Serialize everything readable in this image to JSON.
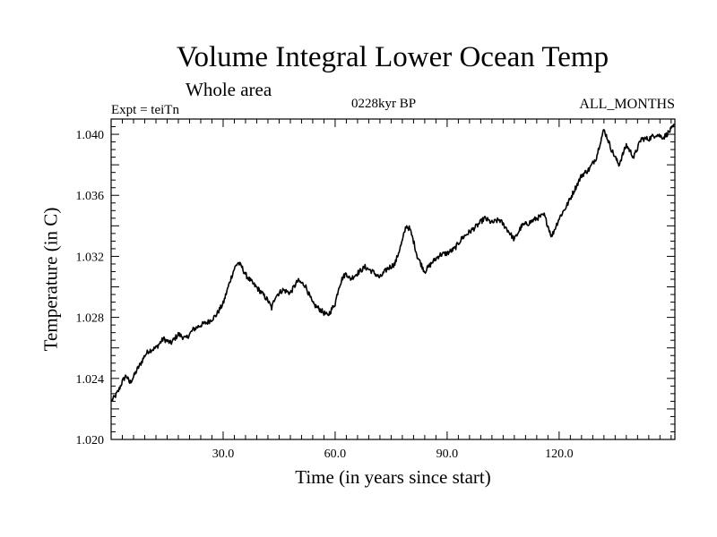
{
  "chart_data": {
    "type": "line",
    "title": "Volume Integral Lower Ocean Temp",
    "subtitle": "Whole area",
    "left_label": "Expt = teiTn",
    "center_label": "0228kyr BP",
    "right_label": "ALL_MONTHS",
    "xlabel": "Time (in years since start)",
    "ylabel": "Temperature (in C)",
    "xlim": [
      0,
      151
    ],
    "ylim": [
      1.02,
      1.041
    ],
    "xticks": [
      30,
      60,
      90,
      120
    ],
    "xtick_labels": [
      "30.0",
      "60.0",
      "90.0",
      "120.0"
    ],
    "yticks": [
      1.02,
      1.024,
      1.028,
      1.032,
      1.036,
      1.04
    ],
    "ytick_labels": [
      "1.020",
      "1.024",
      "1.028",
      "1.032",
      "1.036",
      "1.040"
    ],
    "series": [
      {
        "name": "Temperature",
        "x": [
          0,
          1,
          2,
          3,
          4,
          5,
          6,
          7,
          8,
          9,
          10,
          12,
          14,
          16,
          18,
          20,
          22,
          24,
          26,
          28,
          30,
          32,
          33,
          34,
          35,
          36,
          38,
          40,
          42,
          43,
          44,
          46,
          48,
          50,
          52,
          54,
          56,
          58,
          60,
          61,
          62,
          63,
          64,
          66,
          68,
          70,
          72,
          74,
          76,
          78,
          79,
          80,
          81,
          82,
          84,
          86,
          88,
          90,
          92,
          94,
          96,
          98,
          100,
          102,
          104,
          106,
          108,
          110,
          112,
          114,
          116,
          118,
          120,
          122,
          124,
          126,
          128,
          130,
          131,
          132,
          133,
          134,
          136,
          138,
          140,
          142,
          144,
          146,
          148,
          150,
          151
        ],
        "y": [
          1.0225,
          1.0228,
          1.0232,
          1.0238,
          1.0242,
          1.0237,
          1.0241,
          1.0246,
          1.025,
          1.0255,
          1.0258,
          1.026,
          1.0266,
          1.0263,
          1.0269,
          1.0266,
          1.0272,
          1.0275,
          1.0277,
          1.0281,
          1.0289,
          1.0305,
          1.0312,
          1.0316,
          1.0313,
          1.0308,
          1.0302,
          1.0297,
          1.0291,
          1.0286,
          1.0294,
          1.0298,
          1.0296,
          1.0304,
          1.0301,
          1.0289,
          1.0285,
          1.0281,
          1.0289,
          1.03,
          1.0306,
          1.0309,
          1.0305,
          1.0309,
          1.0313,
          1.031,
          1.0306,
          1.0312,
          1.0315,
          1.033,
          1.034,
          1.0338,
          1.033,
          1.032,
          1.031,
          1.0316,
          1.0321,
          1.0322,
          1.0325,
          1.0332,
          1.0336,
          1.034,
          1.0345,
          1.0342,
          1.0344,
          1.0338,
          1.0331,
          1.034,
          1.0342,
          1.0345,
          1.0347,
          1.0333,
          1.0345,
          1.0353,
          1.0363,
          1.0373,
          1.0377,
          1.0385,
          1.0395,
          1.0403,
          1.0397,
          1.039,
          1.038,
          1.0393,
          1.0385,
          1.0397,
          1.0397,
          1.04,
          1.0398,
          1.0403,
          1.0406
        ]
      }
    ]
  }
}
